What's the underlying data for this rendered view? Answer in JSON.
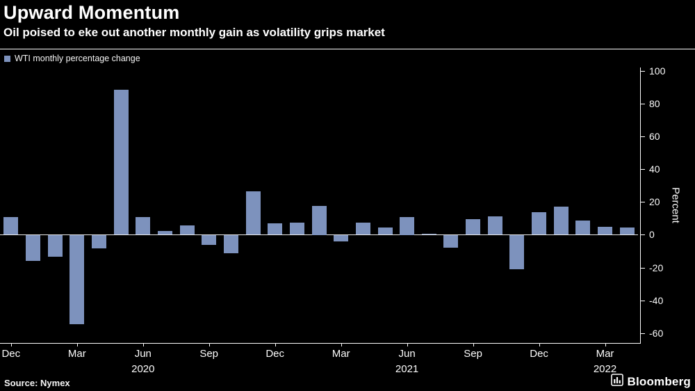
{
  "header": {
    "title": "Upward Momentum",
    "subtitle": "Oil poised to eke out another monthly gain as volatility grips market"
  },
  "legend": {
    "label": "WTI monthly percentage change",
    "swatch_color": "#7d92bd"
  },
  "chart_data": {
    "type": "bar",
    "title": "Upward Momentum",
    "subtitle": "Oil poised to eke out another monthly gain as volatility grips market",
    "series_name": "WTI monthly percentage change",
    "xlabel": "",
    "ylabel": "Percent",
    "ylim": [
      -66,
      102
    ],
    "grid": false,
    "legend_position": "top-left",
    "bar_color": "#7d92bd",
    "background_color": "#000000",
    "categories": [
      "Dec 2019",
      "Jan 2020",
      "Feb 2020",
      "Mar 2020",
      "Apr 2020",
      "May 2020",
      "Jun 2020",
      "Jul 2020",
      "Aug 2020",
      "Sep 2020",
      "Oct 2020",
      "Nov 2020",
      "Dec 2020",
      "Jan 2021",
      "Feb 2021",
      "Mar 2021",
      "Apr 2021",
      "May 2021",
      "Jun 2021",
      "Jul 2021",
      "Aug 2021",
      "Sep 2021",
      "Oct 2021",
      "Nov 2021",
      "Dec 2021",
      "Jan 2022",
      "Feb 2022",
      "Mar 2022",
      "Apr 2022"
    ],
    "values": [
      10.7,
      -15.6,
      -13.2,
      -54.2,
      -8.0,
      88.4,
      10.7,
      2.5,
      5.8,
      -5.6,
      -11.0,
      26.7,
      7.0,
      7.6,
      17.8,
      -3.8,
      7.5,
      4.3,
      10.8,
      0.7,
      -7.4,
      9.5,
      11.4,
      -20.8,
      13.6,
      17.2,
      8.6,
      4.8,
      4.4
    ],
    "y_ticks": [
      100,
      80,
      60,
      40,
      20,
      0,
      -20,
      -40,
      -60
    ],
    "x_ticks": [
      {
        "index": 0,
        "label": "Dec"
      },
      {
        "index": 3,
        "label": "Mar"
      },
      {
        "index": 6,
        "label": "Jun"
      },
      {
        "index": 9,
        "label": "Sep"
      },
      {
        "index": 12,
        "label": "Dec"
      },
      {
        "index": 15,
        "label": "Mar"
      },
      {
        "index": 18,
        "label": "Jun"
      },
      {
        "index": 21,
        "label": "Sep"
      },
      {
        "index": 24,
        "label": "Dec"
      },
      {
        "index": 27,
        "label": "Mar"
      }
    ],
    "year_labels": [
      {
        "index": 6,
        "label": "2020"
      },
      {
        "index": 18,
        "label": "2021"
      },
      {
        "index": 27,
        "label": "2022"
      }
    ]
  },
  "footer": {
    "source": "Source: Nymex",
    "brand": "Bloomberg"
  }
}
